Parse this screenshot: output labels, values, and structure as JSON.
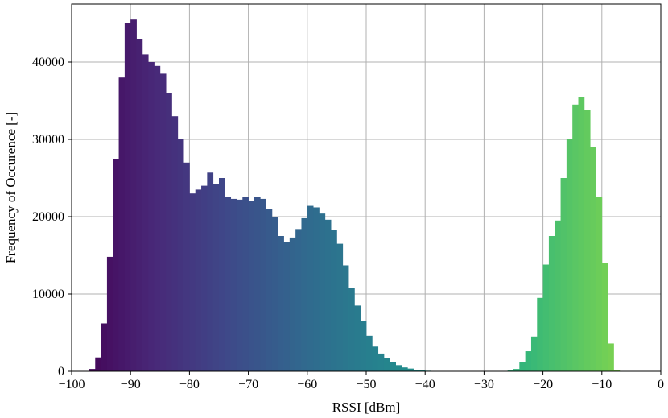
{
  "chart_data": {
    "type": "bar",
    "xlabel": "RSSI [dBm]",
    "ylabel": "Frequency of Occurence [-]",
    "xlim": [
      -100,
      0
    ],
    "ylim": [
      0,
      47500
    ],
    "grid": true,
    "colormap": "viridis",
    "x_ticks": [
      -100,
      -90,
      -80,
      -70,
      -60,
      -50,
      -40,
      -30,
      -20,
      -10,
      0
    ],
    "x_tick_labels": [
      "−100",
      "−90",
      "−80",
      "−70",
      "−60",
      "−50",
      "−40",
      "−30",
      "−20",
      "−10",
      "0"
    ],
    "y_ticks": [
      0,
      10000,
      20000,
      30000,
      40000
    ],
    "y_tick_labels": [
      "0",
      "10000",
      "20000",
      "30000",
      "40000"
    ],
    "bin_width": 1,
    "bins_start": [
      -97,
      -96,
      -95,
      -94,
      -93,
      -92,
      -91,
      -90,
      -89,
      -88,
      -87,
      -86,
      -85,
      -84,
      -83,
      -82,
      -81,
      -80,
      -79,
      -78,
      -77,
      -76,
      -75,
      -74,
      -73,
      -72,
      -71,
      -70,
      -69,
      -68,
      -67,
      -66,
      -65,
      -64,
      -63,
      -62,
      -61,
      -60,
      -59,
      -58,
      -57,
      -56,
      -55,
      -54,
      -53,
      -52,
      -51,
      -50,
      -49,
      -48,
      -47,
      -46,
      -45,
      -44,
      -43,
      -42,
      -41,
      -40,
      -39,
      -38,
      -37,
      -36,
      -35,
      -34,
      -33,
      -32,
      -31,
      -30,
      -29,
      -28,
      -27,
      -26,
      -25,
      -24,
      -23,
      -22,
      -21,
      -20,
      -19,
      -18,
      -17,
      -16,
      -15,
      -14,
      -13,
      -12,
      -11,
      -10,
      -9,
      -8
    ],
    "values": [
      300,
      1800,
      6200,
      14800,
      27500,
      38000,
      45000,
      45500,
      43000,
      41000,
      40000,
      39500,
      38500,
      36000,
      33000,
      30000,
      27000,
      23000,
      23500,
      24000,
      25700,
      24200,
      25000,
      22600,
      22300,
      22200,
      22500,
      22000,
      22500,
      22300,
      21000,
      20000,
      17500,
      16700,
      17300,
      18400,
      19800,
      21400,
      21200,
      20400,
      19600,
      18300,
      16500,
      13700,
      10800,
      8500,
      6500,
      4600,
      3200,
      2300,
      1700,
      1200,
      800,
      500,
      350,
      200,
      120,
      70,
      40,
      20,
      10,
      5,
      3,
      2,
      2,
      2,
      2,
      2,
      2,
      5,
      20,
      100,
      300,
      1200,
      2600,
      4500,
      9500,
      13800,
      17500,
      19500,
      25000,
      30000,
      34500,
      35500,
      33800,
      29000,
      22500,
      14000,
      3600,
      200
    ]
  }
}
